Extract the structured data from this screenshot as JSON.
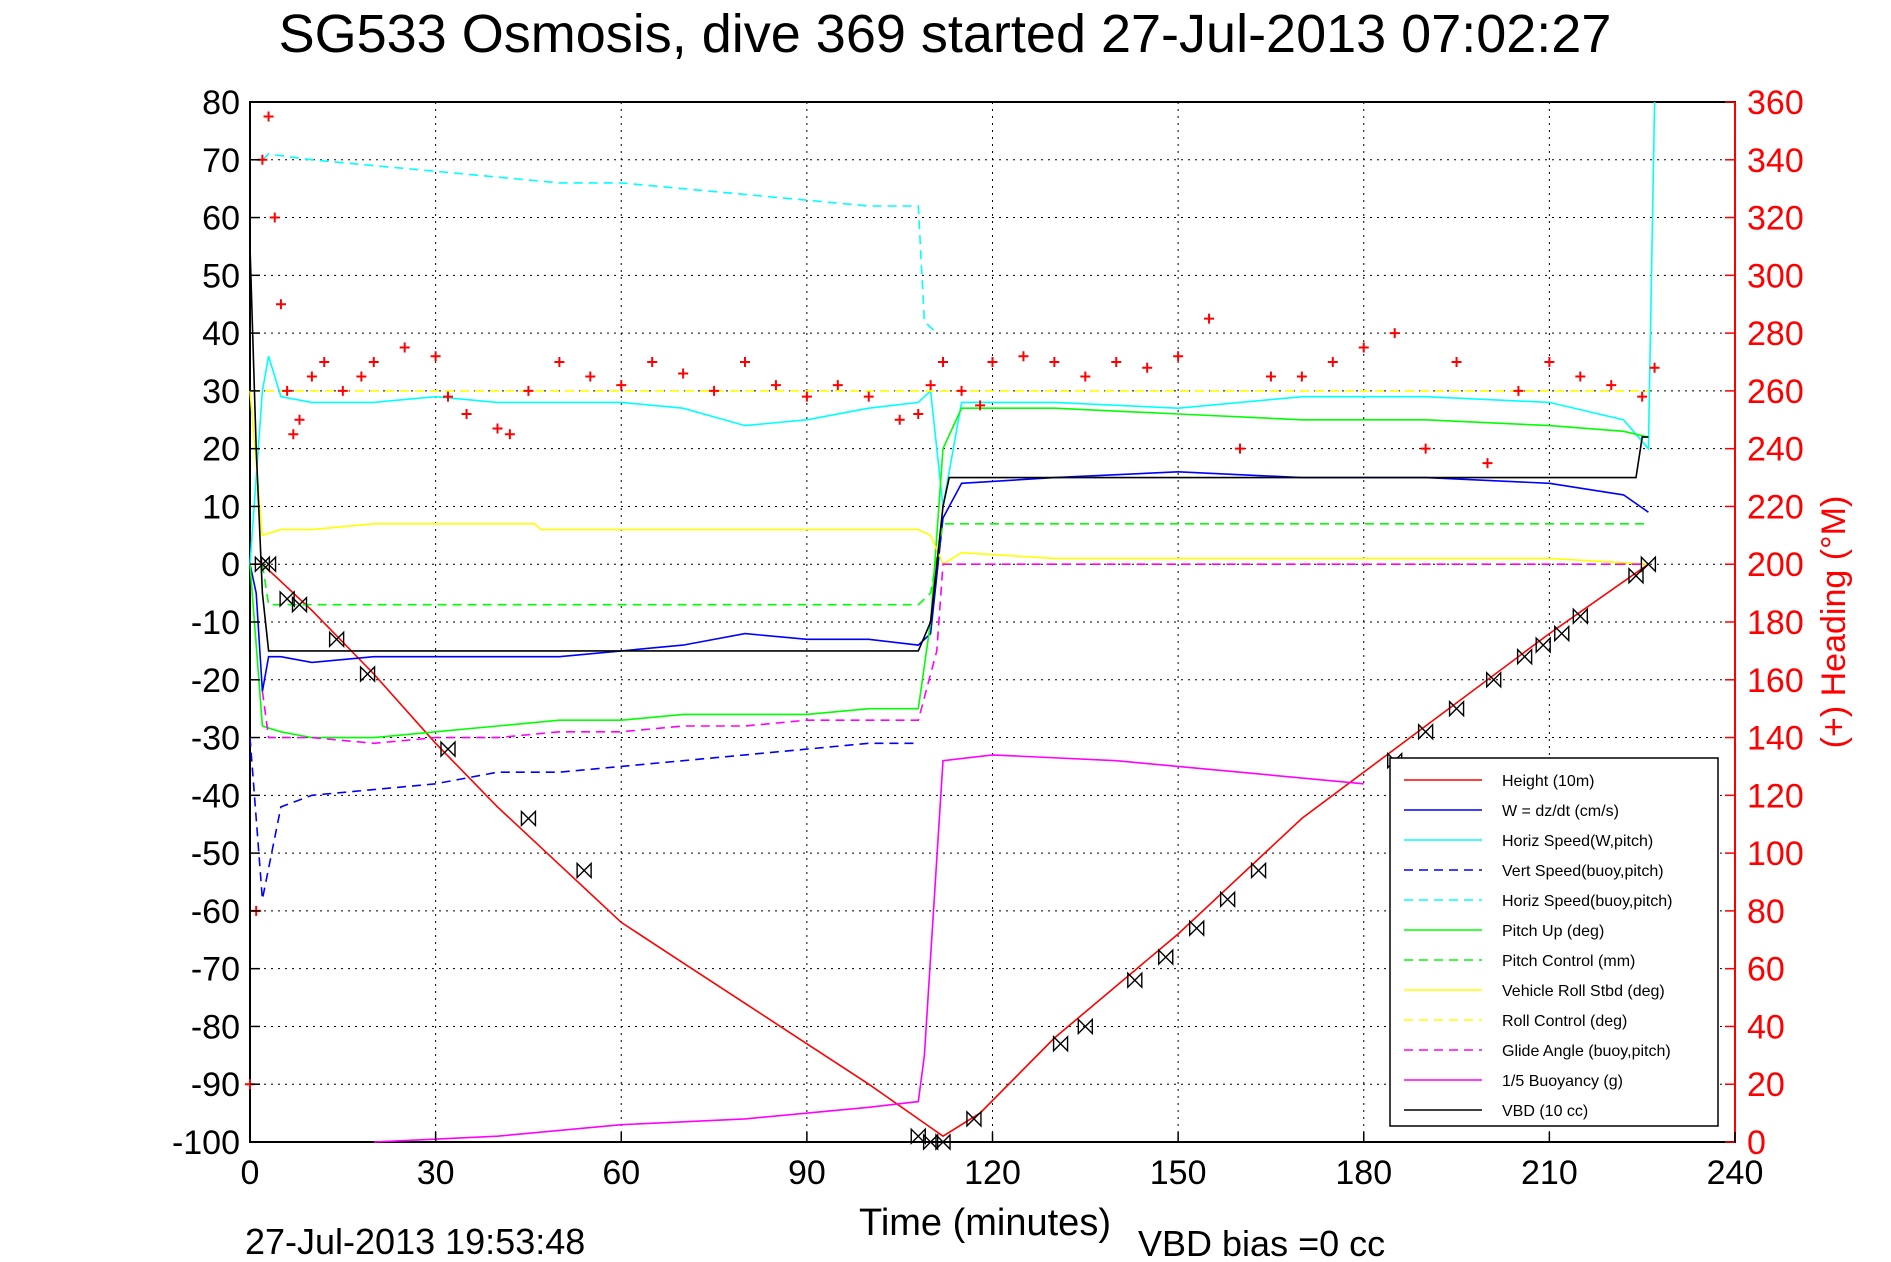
{
  "chart_data": {
    "type": "line",
    "title": "SG533 Osmosis, dive 369 started 27-Jul-2013 07:02:27",
    "xlabel": "Time (minutes)",
    "ylabel": "",
    "y2label": "(+) Heading (°M)",
    "footer_left": "27-Jul-2013 19:53:48",
    "footer_right": "VBD bias =0 cc",
    "xlim": [
      0,
      240
    ],
    "ylim": [
      -100,
      80
    ],
    "y2lim": [
      0,
      360
    ],
    "xticks": [
      0,
      30,
      60,
      90,
      120,
      150,
      180,
      210,
      240
    ],
    "yticks": [
      80,
      70,
      60,
      50,
      40,
      30,
      20,
      10,
      0,
      -10,
      -20,
      -30,
      -40,
      -50,
      -60,
      -70,
      -80,
      -90,
      -100
    ],
    "y2ticks": [
      360,
      340,
      320,
      300,
      280,
      260,
      240,
      220,
      200,
      180,
      160,
      140,
      120,
      100,
      80,
      60,
      40,
      20,
      0
    ],
    "grid": true,
    "legend_position": "bottom-right",
    "series": [
      {
        "name": "Height (10m)",
        "color": "#ff0000",
        "style": "solid",
        "marker": "none",
        "x": [
          0,
          2,
          10,
          20,
          30,
          40,
          50,
          60,
          70,
          80,
          90,
          100,
          108,
          112,
          118,
          130,
          150,
          170,
          190,
          210,
          226
        ],
        "y": [
          0,
          0,
          -8,
          -19,
          -31,
          -42,
          -52,
          -62,
          -69,
          -76,
          -83,
          -90,
          -96,
          -99,
          -95,
          -82,
          -64,
          -44,
          -28,
          -12,
          0
        ]
      },
      {
        "name": "W = dz/dt (cm/s)",
        "color": "#0000ff",
        "style": "solid",
        "marker": "none",
        "x": [
          0,
          1,
          2,
          3,
          5,
          10,
          20,
          30,
          40,
          50,
          60,
          70,
          80,
          90,
          100,
          108,
          110,
          111,
          112,
          115,
          130,
          150,
          170,
          190,
          210,
          222,
          226
        ],
        "y": [
          0,
          -5,
          -22,
          -16,
          -16,
          -17,
          -16,
          -16,
          -16,
          -16,
          -15,
          -14,
          -12,
          -13,
          -13,
          -14,
          -12,
          -2,
          8,
          14,
          15,
          16,
          15,
          15,
          14,
          12,
          9
        ]
      },
      {
        "name": "Horiz Speed(W,pitch)",
        "color": "#00ffff",
        "style": "solid",
        "marker": "none",
        "x": [
          0,
          2,
          3,
          5,
          10,
          20,
          30,
          40,
          50,
          60,
          70,
          80,
          90,
          100,
          108,
          110,
          112,
          115,
          130,
          150,
          170,
          190,
          210,
          222,
          226,
          227
        ],
        "y": [
          0,
          30,
          36,
          29,
          28,
          28,
          29,
          28,
          28,
          28,
          27,
          24,
          25,
          27,
          28,
          30,
          10,
          28,
          28,
          27,
          29,
          29,
          28,
          25,
          20,
          80
        ]
      },
      {
        "name": "Vert Speed(buoy,pitch)",
        "color": "#0000ff",
        "style": "dashed",
        "marker": "none",
        "x": [
          0,
          2,
          5,
          10,
          20,
          30,
          40,
          50,
          60,
          70,
          80,
          90,
          100,
          108
        ],
        "y": [
          -30,
          -58,
          -42,
          -40,
          -39,
          -38,
          -36,
          -36,
          -35,
          -34,
          -33,
          -32,
          -31,
          -31
        ]
      },
      {
        "name": "Horiz Speed(buoy,pitch)",
        "color": "#00ffff",
        "style": "dashed",
        "marker": "none",
        "x": [
          2,
          3,
          10,
          20,
          30,
          40,
          50,
          60,
          70,
          80,
          90,
          100,
          108,
          109,
          111
        ],
        "y": [
          70,
          71,
          70,
          69,
          68,
          67,
          66,
          66,
          65,
          64,
          63,
          62,
          62,
          42,
          40
        ]
      },
      {
        "name": "Pitch Up (deg)",
        "color": "#00ff00",
        "style": "solid",
        "marker": "none",
        "x": [
          0,
          2,
          5,
          10,
          20,
          30,
          40,
          50,
          60,
          70,
          80,
          90,
          100,
          108,
          110,
          112,
          115,
          130,
          150,
          170,
          190,
          210,
          222,
          226
        ],
        "y": [
          0,
          -28,
          -29,
          -30,
          -30,
          -29,
          -28,
          -27,
          -27,
          -26,
          -26,
          -26,
          -25,
          -25,
          -10,
          20,
          27,
          27,
          26,
          25,
          25,
          24,
          23,
          22
        ]
      },
      {
        "name": "Pitch Control (mm)",
        "color": "#00ff00",
        "style": "dashed",
        "marker": "none",
        "x": [
          2,
          3,
          108,
          110,
          112,
          226
        ],
        "y": [
          0,
          -7,
          -7,
          -5,
          7,
          7
        ]
      },
      {
        "name": "Vehicle Roll Stbd (deg)",
        "color": "#ffff00",
        "style": "solid",
        "marker": "none",
        "x": [
          0,
          2,
          5,
          10,
          20,
          30,
          40,
          46,
          47,
          60,
          70,
          80,
          90,
          100,
          108,
          110,
          112,
          115,
          130,
          150,
          170,
          190,
          210,
          226
        ],
        "y": [
          30,
          5,
          6,
          6,
          7,
          7,
          7,
          7,
          6,
          6,
          6,
          6,
          6,
          6,
          6,
          5,
          0,
          2,
          1,
          1,
          1,
          1,
          1,
          0
        ]
      },
      {
        "name": "Roll Control (deg)",
        "color": "#ffff00",
        "style": "dashed",
        "marker": "none",
        "x": [
          0,
          226
        ],
        "y": [
          30,
          30
        ]
      },
      {
        "name": "Glide Angle (buoy,pitch)",
        "color": "#ff00ff",
        "style": "dashed",
        "marker": "none",
        "x": [
          2,
          3,
          10,
          20,
          30,
          40,
          50,
          60,
          70,
          80,
          90,
          100,
          108,
          111,
          112,
          226
        ],
        "y": [
          -22,
          -30,
          -30,
          -31,
          -30,
          -30,
          -29,
          -29,
          -28,
          -28,
          -27,
          -27,
          -27,
          -15,
          0,
          0
        ]
      },
      {
        "name": "1/5 Buoyancy (g)",
        "color": "#ff00ff",
        "style": "solid",
        "marker": "none",
        "x": [
          20,
          40,
          60,
          80,
          100,
          108,
          109,
          112,
          120,
          140,
          160,
          180
        ],
        "y": [
          -100,
          -99,
          -97,
          -96,
          -94,
          -93,
          -85,
          -34,
          -33,
          -34,
          -36,
          -38
        ]
      },
      {
        "name": "VBD (10 cc)",
        "color": "#000000",
        "style": "solid",
        "marker": "none",
        "x": [
          0,
          1,
          2,
          3,
          108,
          110,
          112,
          113,
          224,
          225,
          226
        ],
        "y": [
          55,
          20,
          -5,
          -15,
          -15,
          -10,
          10,
          15,
          15,
          22,
          22
        ]
      },
      {
        "name": "",
        "color": "#ff0000",
        "style": "none",
        "marker": "+",
        "axis": "right",
        "x": [
          0,
          1,
          2,
          3,
          4,
          5,
          6,
          7,
          8,
          10,
          12,
          15,
          18,
          20,
          25,
          30,
          32,
          35,
          40,
          42,
          45,
          50,
          55,
          60,
          65,
          70,
          75,
          80,
          85,
          90,
          95,
          100,
          105,
          108,
          110,
          112,
          115,
          118,
          120,
          125,
          130,
          135,
          140,
          145,
          150,
          155,
          160,
          165,
          170,
          175,
          180,
          185,
          190,
          195,
          200,
          205,
          210,
          215,
          220,
          225,
          227
        ],
        "y": [
          20,
          80,
          340,
          355,
          320,
          290,
          260,
          245,
          250,
          265,
          270,
          260,
          265,
          270,
          275,
          272,
          258,
          252,
          247,
          245,
          260,
          270,
          265,
          262,
          270,
          266,
          260,
          270,
          262,
          258,
          262,
          258,
          250,
          252,
          262,
          270,
          260,
          255,
          270,
          272,
          270,
          265,
          270,
          268,
          272,
          285,
          240,
          265,
          265,
          270,
          275,
          280,
          240,
          270,
          235,
          260,
          270,
          265,
          262,
          258,
          268
        ]
      }
    ],
    "markers": {
      "name": "Height markers",
      "symbol": "bowtie",
      "color": "#000000",
      "x": [
        2,
        3,
        6,
        8,
        14,
        19,
        32,
        45,
        54,
        108,
        110,
        112,
        117,
        131,
        135,
        143,
        148,
        153,
        158,
        163,
        185,
        190,
        195,
        201,
        206,
        209,
        212,
        215,
        224,
        226
      ],
      "y": [
        0,
        0,
        -6,
        -7,
        -13,
        -19,
        -32,
        -44,
        -53,
        -99,
        -100,
        -100,
        -96,
        -83,
        -80,
        -72,
        -68,
        -63,
        -58,
        -53,
        -34,
        -29,
        -25,
        -20,
        -16,
        -14,
        -12,
        -9,
        -2,
        0
      ]
    }
  }
}
